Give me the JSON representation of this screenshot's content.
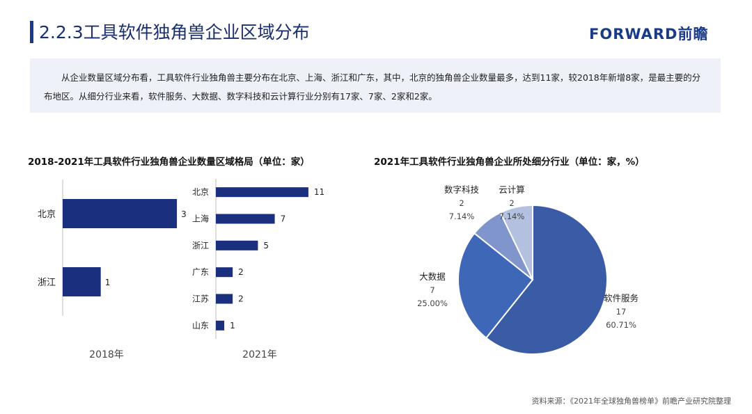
{
  "header": {
    "title": "2.2.3工具软件独角兽企业区域分布",
    "logo_text": "FORWARD前瞻"
  },
  "summary": "从企业数量区域分布看，工具软件行业独角兽主要分布在北京、上海、浙江和广东，其中，北京的独角兽企业数量最多，达到11家，较2018年新增8家，是最主要的分布地区。从细分行业来看，软件服务、大数据、数字科技和云计算行业分别有17家、7家、2家和2家。",
  "footer": {
    "source": "资料来源：《2021年全球独角兽榜单》前瞻产业研究院整理"
  },
  "colors": {
    "accent": "#1a3a8a",
    "bar": "#1a2f7e",
    "summary_bg": "#eef1f7",
    "pie": [
      "#3a5ba5",
      "#3f67b8",
      "#7f95cc",
      "#b3c0e0"
    ]
  },
  "chart_data": [
    {
      "type": "bar",
      "orientation": "horizontal",
      "title": "2018-2021年工具软件行业独角兽企业数量区域格局（单位：家）",
      "panels": [
        {
          "xlabel": "2018年",
          "categories": [
            "北京",
            "浙江"
          ],
          "values": [
            3,
            1
          ],
          "xlim": [
            0,
            3.2
          ]
        },
        {
          "xlabel": "2021年",
          "categories": [
            "北京",
            "上海",
            "浙江",
            "广东",
            "江苏",
            "山东"
          ],
          "values": [
            11,
            7,
            5,
            2,
            2,
            1
          ],
          "xlim": [
            0,
            12
          ]
        }
      ],
      "data_labels": true,
      "grid": false
    },
    {
      "type": "pie",
      "title": "2021年工具软件行业独角兽企业所处细分行业（单位：家，%）",
      "slices": [
        {
          "label": "软件服务",
          "value": 17,
          "percent": "60.71%"
        },
        {
          "label": "大数据",
          "value": 7,
          "percent": "25.00%"
        },
        {
          "label": "数字科技",
          "value": 2,
          "percent": "7.14%"
        },
        {
          "label": "云计算",
          "value": 2,
          "percent": "7.14%"
        }
      ]
    }
  ]
}
